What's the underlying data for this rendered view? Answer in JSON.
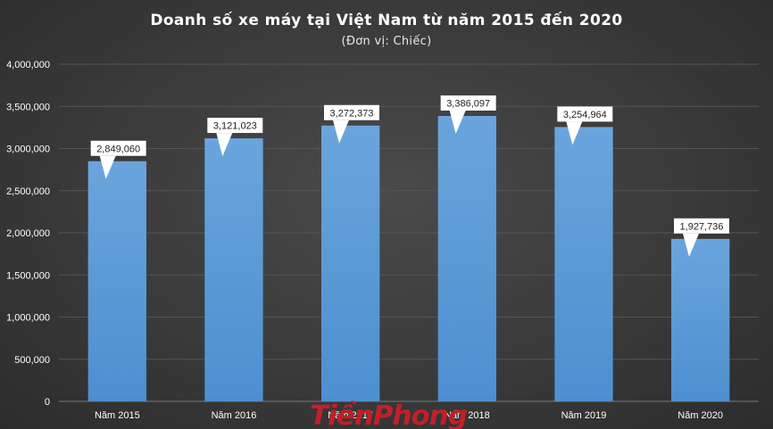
{
  "chart_data": {
    "type": "bar",
    "title": "Doanh  số  xe  máy  tại  Việt  Nam  từ  năm  2015  đến  2020",
    "subtitle": "(Đơn  vị:  Chiếc)",
    "categories": [
      "Năm 2015",
      "Năm 2016",
      "Năm 2017",
      "Năm 2018",
      "Năm 2019",
      "Năm 2020"
    ],
    "values": [
      2849060,
      3121023,
      3272373,
      3386097,
      3254964,
      1927736
    ],
    "value_labels": [
      "2,849,060",
      "3,121,023",
      "3,272,373",
      "3,386,097",
      "3,254,964",
      "1,927,736"
    ],
    "y_ticks": [
      "0",
      "500,000",
      "1,000,000",
      "1,500,000",
      "2,000,000",
      "2,500,000",
      "3,000,000",
      "3,500,000",
      "4,000,000"
    ],
    "ylim": [
      0,
      4000000
    ],
    "grid": true,
    "legend": "none",
    "bar_color": "#5b9bd5",
    "background_color": "#3a3a3a",
    "gridline_color": "#555555"
  },
  "watermark": {
    "text": "Tiền Phong",
    "color": "#c0202a"
  }
}
